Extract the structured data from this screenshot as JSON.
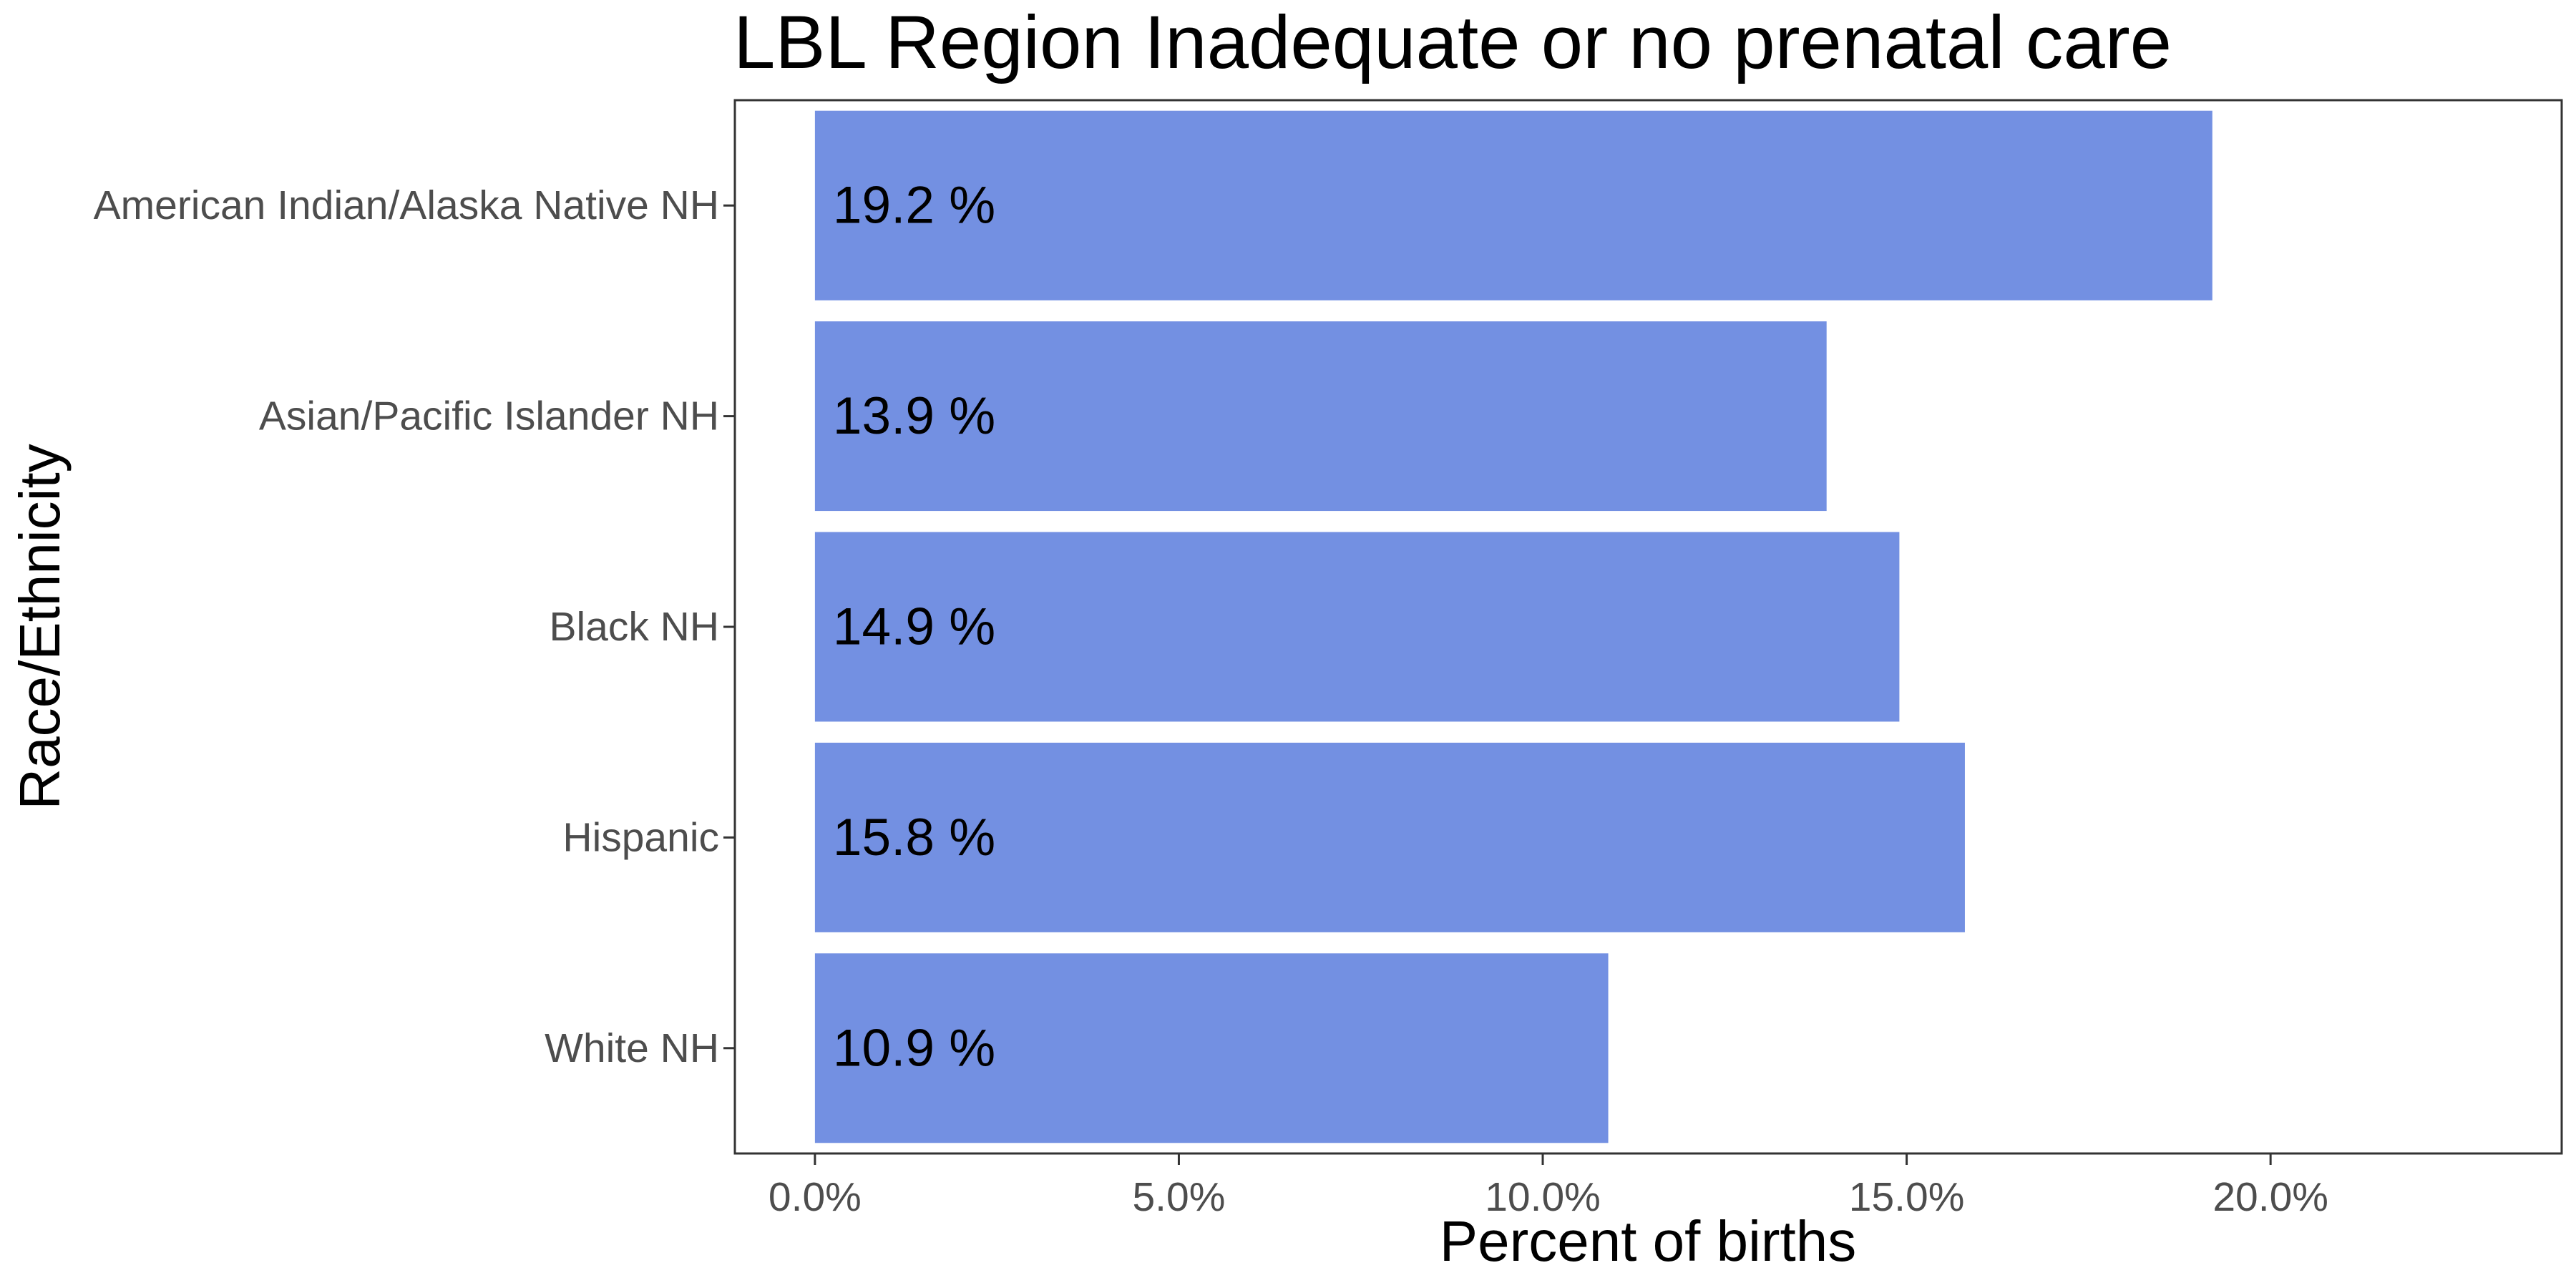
{
  "chart_data": {
    "type": "bar",
    "orientation": "horizontal",
    "title": "LBL Region Inadequate or no prenatal care",
    "xlabel": "Percent of births",
    "ylabel": "Race/Ethnicity",
    "categories": [
      "American Indian/Alaska Native NH",
      "Asian/Pacific Islander NH",
      "Black NH",
      "Hispanic",
      "White NH"
    ],
    "values": [
      19.2,
      13.9,
      14.9,
      15.8,
      10.9
    ],
    "data_labels": [
      "19.2 %",
      "13.9 %",
      "14.9 %",
      "15.8 %",
      "10.9 %"
    ],
    "xlim": [
      -1.1,
      24.0
    ],
    "x_ticks": [
      0,
      5,
      10,
      15,
      20
    ],
    "x_tick_labels": [
      "0.0%",
      "5.0%",
      "10.0%",
      "15.0%",
      "20.0%"
    ],
    "bar_color": "#7390e2",
    "grid": false,
    "legend": "none"
  }
}
